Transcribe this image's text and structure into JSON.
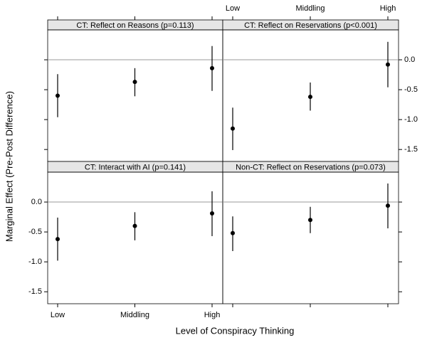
{
  "chart_data": {
    "type": "errorbar",
    "xlabel": "Level of Conspiracy Thinking",
    "ylabel": "Marginal Effect (Pre-Post Difference)",
    "categories": [
      "Low",
      "Middling",
      "High"
    ],
    "ylim": [
      -1.7,
      0.5
    ],
    "yticks": [
      {
        "value": 0,
        "label": "0.0"
      },
      -0.5,
      {
        "value": -1,
        "label": "-1.0"
      },
      -1.5
    ],
    "color": "#000000",
    "panels": [
      {
        "title": "CT: Reflect on Reasons (p=0.113)",
        "values": [
          -0.6,
          -0.37,
          -0.14
        ],
        "lower": [
          -0.96,
          -0.61,
          -0.52
        ],
        "upper": [
          -0.24,
          -0.14,
          0.23
        ]
      },
      {
        "title": "CT: Reflect on Reservations (p<0.001)",
        "values": [
          -1.15,
          -0.62,
          -0.08
        ],
        "lower": [
          -1.51,
          -0.85,
          -0.46
        ],
        "upper": [
          -0.8,
          -0.38,
          0.3
        ]
      },
      {
        "title": "CT: Interact with AI (p=0.141)",
        "values": [
          -0.62,
          -0.4,
          -0.19
        ],
        "lower": [
          -0.98,
          -0.64,
          -0.57
        ],
        "upper": [
          -0.26,
          -0.17,
          0.18
        ]
      },
      {
        "title": "Non-CT: Reflect on Reservations (p=0.073)",
        "values": [
          -0.52,
          -0.3,
          -0.06
        ],
        "lower": [
          -0.82,
          -0.52,
          -0.44
        ],
        "upper": [
          -0.24,
          -0.08,
          0.31
        ]
      }
    ]
  }
}
